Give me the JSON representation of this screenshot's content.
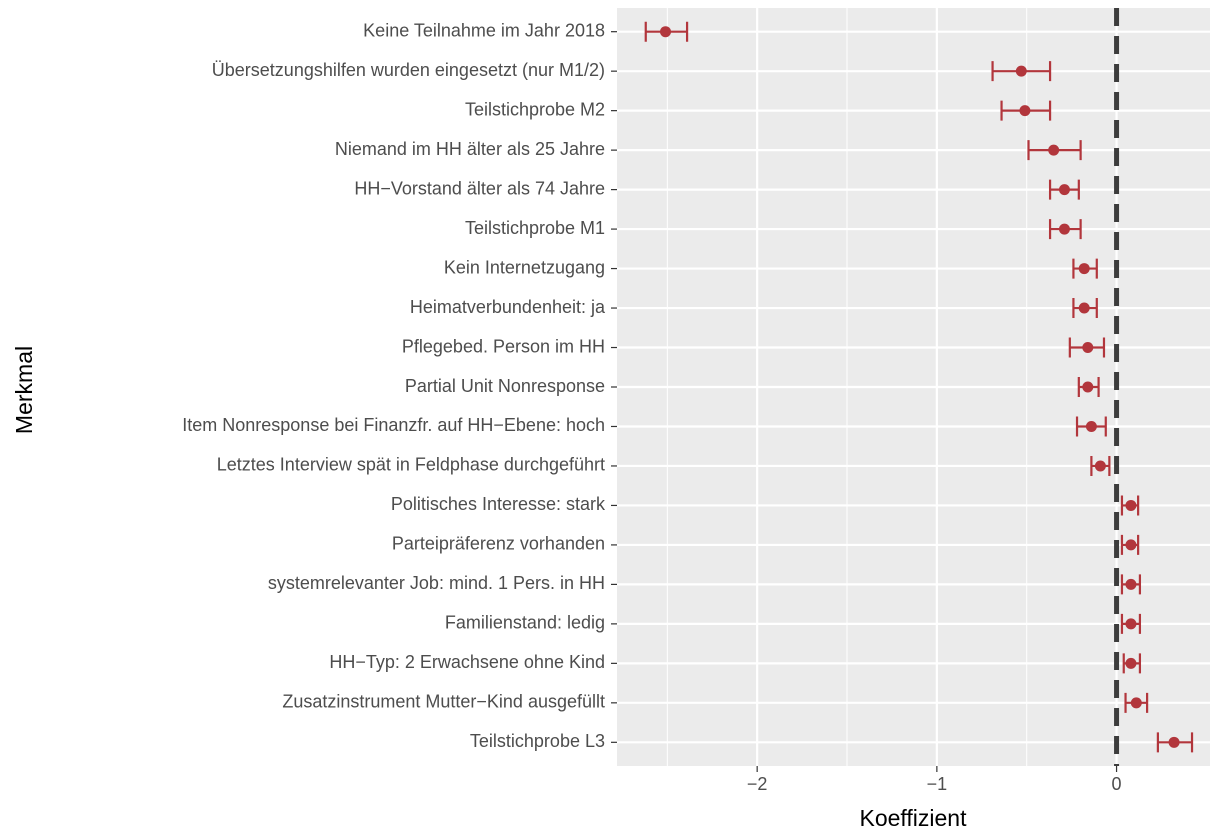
{
  "chart_data": {
    "type": "errorbar",
    "xlabel": "Koeffizient",
    "ylabel": "Merkmal",
    "categories": [
      "Keine Teilnahme im Jahr 2018",
      "Übersetzungshilfen wurden eingesetzt (nur M1/2)",
      "Teilstichprobe M2",
      "Niemand im HH älter als 25 Jahre",
      "HH−Vorstand älter als 74 Jahre",
      "Teilstichprobe M1",
      "Kein Internetzugang",
      "Heimatverbundenheit: ja",
      "Pflegebed. Person im HH",
      "Partial Unit Nonresponse",
      "Item Nonresponse bei Finanzfr. auf HH−Ebene: hoch",
      "Letztes Interview spät in Feldphase durchgeführt",
      "Politisches Interesse: stark",
      "Parteipräferenz vorhanden",
      "systemrelevanter Job: mind. 1 Pers. in HH",
      "Familienstand: ledig",
      "HH−Typ: 2 Erwachsene ohne Kind",
      "Zusatzinstrument Mutter−Kind ausgefüllt",
      "Teilstichprobe L3"
    ],
    "values": [
      -2.51,
      -0.53,
      -0.51,
      -0.35,
      -0.29,
      -0.29,
      -0.18,
      -0.18,
      -0.16,
      -0.16,
      -0.14,
      -0.09,
      0.08,
      0.08,
      0.08,
      0.08,
      0.08,
      0.11,
      0.32
    ],
    "lower": [
      -2.62,
      -0.69,
      -0.64,
      -0.49,
      -0.37,
      -0.37,
      -0.24,
      -0.24,
      -0.26,
      -0.21,
      -0.22,
      -0.14,
      0.03,
      0.03,
      0.03,
      0.03,
      0.04,
      0.05,
      0.23
    ],
    "upper": [
      -2.39,
      -0.37,
      -0.37,
      -0.2,
      -0.21,
      -0.2,
      -0.11,
      -0.11,
      -0.07,
      -0.1,
      -0.06,
      -0.04,
      0.12,
      0.12,
      0.13,
      0.13,
      0.13,
      0.17,
      0.42
    ],
    "color": "#b2363c",
    "xlim": [
      -2.78,
      0.52
    ],
    "xticks": [
      {
        "value": -2,
        "label": "−2"
      },
      {
        "value": -1,
        "label": "−1"
      },
      0
    ],
    "minor_xticks": [
      -2.5,
      -1.5,
      -0.5
    ],
    "reference_line": 0,
    "grid": true
  }
}
